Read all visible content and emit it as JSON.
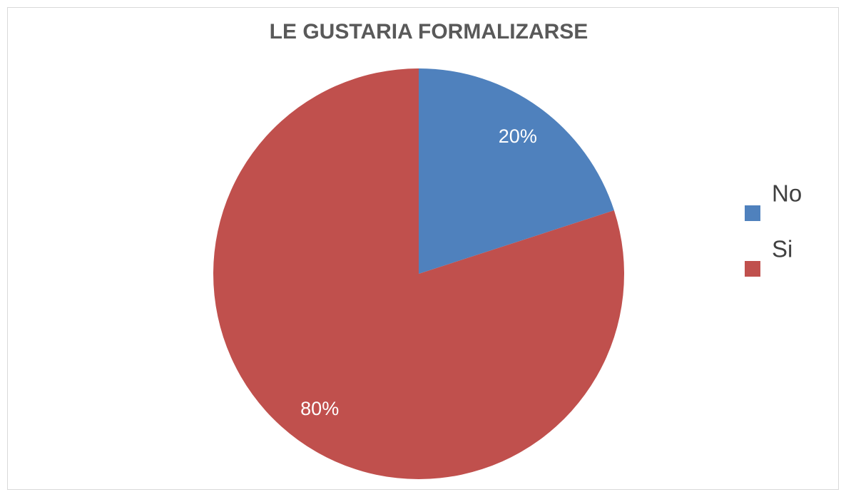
{
  "chart_data": {
    "type": "pie",
    "title": "LE GUSTARIA FORMALIZARSE",
    "categories": [
      "No",
      "Si"
    ],
    "values": [
      20,
      80
    ],
    "value_labels": [
      "20%",
      "80%"
    ],
    "colors": [
      "#4f81bd",
      "#c0504d"
    ],
    "legend": "right"
  }
}
